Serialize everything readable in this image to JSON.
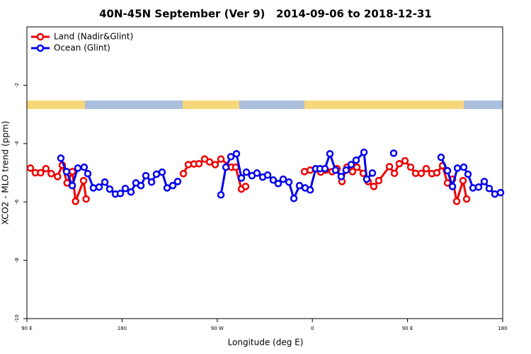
{
  "chart_data": {
    "type": "line",
    "title": "40N-45N September (Ver 9)   2014-09-06 to 2018-12-31",
    "x_label": "Longitude (deg E)",
    "y_label": "XCO2 - MLO trend (ppm)",
    "xlim": [
      90,
      540
    ],
    "ylim": [
      -10,
      0
    ],
    "xticks": [
      {
        "value": 90,
        "label": "90 E"
      },
      180,
      {
        "value": 270,
        "label": "90 W"
      },
      {
        "value": 360,
        "label": "0"
      },
      {
        "value": 450,
        "label": "90 E"
      },
      {
        "value": 540,
        "label": "180"
      }
    ],
    "yticks": [
      -10,
      -8,
      -6,
      -4,
      -2
    ],
    "legend": "top-left",
    "series": [
      {
        "name": "Land (Nadir&Glint)",
        "color": "#ee0000",
        "x": [
          93.3,
          98,
          103,
          108,
          113,
          119,
          123.5,
          128,
          133,
          136,
          143.6,
          146,
          null,
          238,
          242.7,
          248,
          252.7,
          258.1,
          262.8,
          268.1,
          273.5,
          283.5,
          287.5,
          292.9,
          296.9,
          null,
          352.5,
          357.9,
          367.9,
          372.6,
          378.6,
          383.3,
          388,
          392.7,
          398,
          402.1,
          408.1,
          412.8,
          418.1,
          422.8,
          432.9,
          437.6,
          442.2,
          447.6,
          453,
          457.6,
          463,
          467.7,
          473,
          477.7,
          483.1,
          487.8,
          492.5,
          496.5,
          502.5,
          505.9
        ],
        "values": [
          -4.84,
          -5.0,
          -5.0,
          -4.86,
          -5.03,
          -5.13,
          -4.74,
          -5.35,
          -4.96,
          -5.98,
          -5.27,
          -5.9,
          null,
          -5.03,
          -4.72,
          -4.7,
          -4.69,
          -4.53,
          -4.63,
          -4.72,
          -4.53,
          -4.81,
          -4.81,
          -5.56,
          -5.47,
          null,
          -4.96,
          -4.91,
          -4.98,
          -4.91,
          -4.96,
          -4.86,
          -5.3,
          -4.81,
          -4.96,
          -4.81,
          -5.02,
          -5.3,
          -5.47,
          -5.27,
          -4.79,
          -5.02,
          -4.69,
          -4.59,
          -4.81,
          -5.02,
          -5.02,
          -4.86,
          -5.03,
          -5.0,
          -4.76,
          -5.35,
          -5.22,
          -5.98,
          -5.27,
          -5.9
        ]
      },
      {
        "name": "Ocean (Glint)",
        "color": "#0000ee",
        "x": [
          122.1,
          127.5,
          132.9,
          138.2,
          144.2,
          147.6,
          152.9,
          158.3,
          163.7,
          168.3,
          173.7,
          178.4,
          183.1,
          188.4,
          193.1,
          197.8,
          202.5,
          207.9,
          212.5,
          217.9,
          222.6,
          228,
          232.6,
          null,
          273.5,
          278.2,
          282.9,
          288.2,
          292.9,
          297.6,
          302.9,
          307.6,
          313,
          317.7,
          323,
          327.7,
          332.4,
          337.8,
          342.5,
          347.8,
          353.2,
          357.9,
          363.2,
          367.2,
          371.9,
          376.6,
          381.9,
          387.3,
          391.9,
          396.7,
          401.4,
          408.8,
          411.4,
          416.8,
          null,
          436.9,
          null,
          481.7,
          487.8,
          492.5,
          497.2,
          503.2,
          507.2,
          511.9,
          517.2,
          522.6,
          527.3,
          532.6,
          538
        ],
        "values": [
          -4.5,
          -4.96,
          -5.44,
          -4.84,
          -4.81,
          -5.03,
          -5.52,
          -5.49,
          -5.32,
          -5.56,
          -5.73,
          -5.71,
          -5.54,
          -5.66,
          -5.35,
          -5.44,
          -5.1,
          -5.32,
          -5.05,
          -4.98,
          -5.52,
          -5.44,
          -5.3,
          null,
          -5.76,
          -4.81,
          -4.45,
          -4.35,
          -5.18,
          -4.98,
          -5.1,
          -5.01,
          -5.15,
          -5.08,
          -5.25,
          -5.37,
          -5.22,
          -5.32,
          -5.88,
          -5.44,
          -5.52,
          -5.59,
          -4.86,
          -4.86,
          -4.86,
          -4.35,
          -4.91,
          -5.13,
          -4.91,
          -4.72,
          -4.57,
          -4.3,
          -5.22,
          -5.01,
          null,
          -4.33,
          null,
          -4.47,
          -4.93,
          -5.47,
          -4.84,
          -4.81,
          -5.05,
          -5.52,
          -5.49,
          -5.3,
          -5.54,
          -5.73,
          -5.68
        ]
      }
    ]
  }
}
